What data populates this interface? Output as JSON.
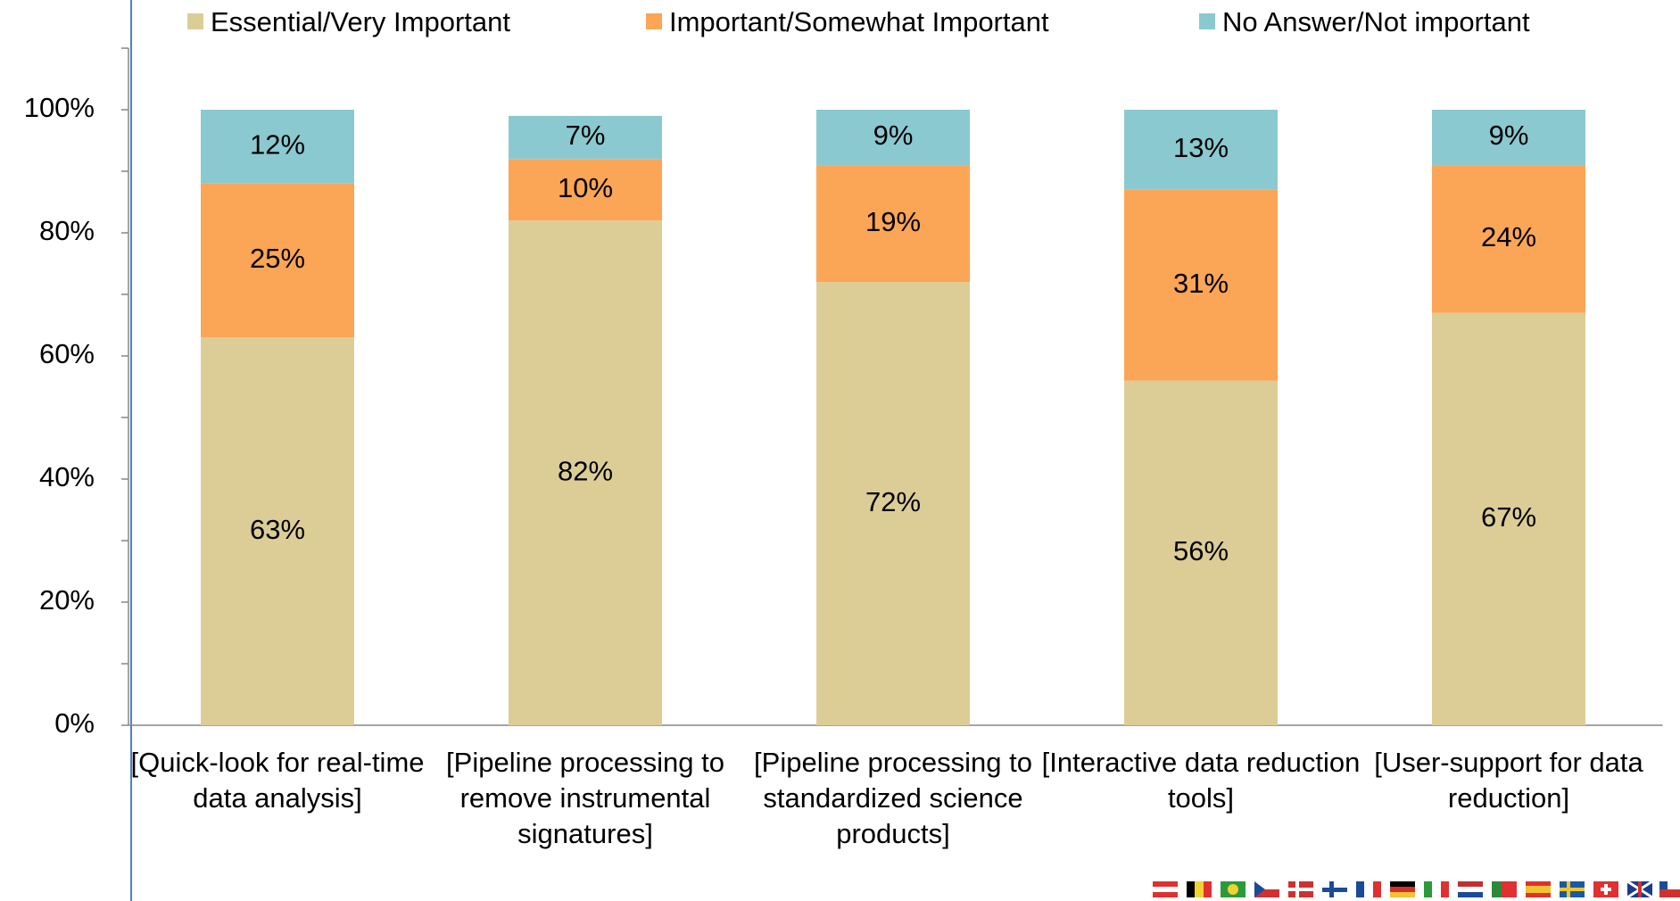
{
  "chart_data": {
    "type": "stacked_bar",
    "categories": [
      "[Quick-look for real-time data analysis]",
      "[Pipeline processing to remove instrumental signatures]",
      "[Pipeline processing to standardized science products]",
      "[Interactive data reduction tools]",
      "[User-support for data reduction]"
    ],
    "series": [
      {
        "name": "Essential/Very Important",
        "color": "#dccd97",
        "values": [
          63,
          82,
          72,
          56,
          67
        ],
        "value_labels": [
          "63%",
          "82%",
          "72%",
          "56%",
          "67%"
        ]
      },
      {
        "name": "Important/Somewhat Important",
        "color": "#fba556",
        "values": [
          25,
          10,
          19,
          31,
          24
        ],
        "value_labels": [
          "25%",
          "10%",
          "19%",
          "31%",
          "24%"
        ]
      },
      {
        "name": "No Answer/Not important",
        "color": "#8bc9d0",
        "values": [
          12,
          7,
          9,
          13,
          9
        ],
        "value_labels": [
          "12%",
          "7%",
          "9%",
          "13%",
          "9%"
        ]
      }
    ],
    "ylim": [
      0,
      110
    ],
    "yticks": [
      {
        "value": 0,
        "label": "0%"
      },
      {
        "value": 20,
        "label": "20%"
      },
      {
        "value": 40,
        "label": "40%"
      },
      {
        "value": 60,
        "label": "60%"
      },
      {
        "value": 80,
        "label": "80%"
      },
      {
        "value": 100,
        "label": "100%"
      }
    ],
    "yticks_minor": [
      10,
      30,
      50,
      70,
      90,
      110
    ],
    "legend": "top"
  }
}
